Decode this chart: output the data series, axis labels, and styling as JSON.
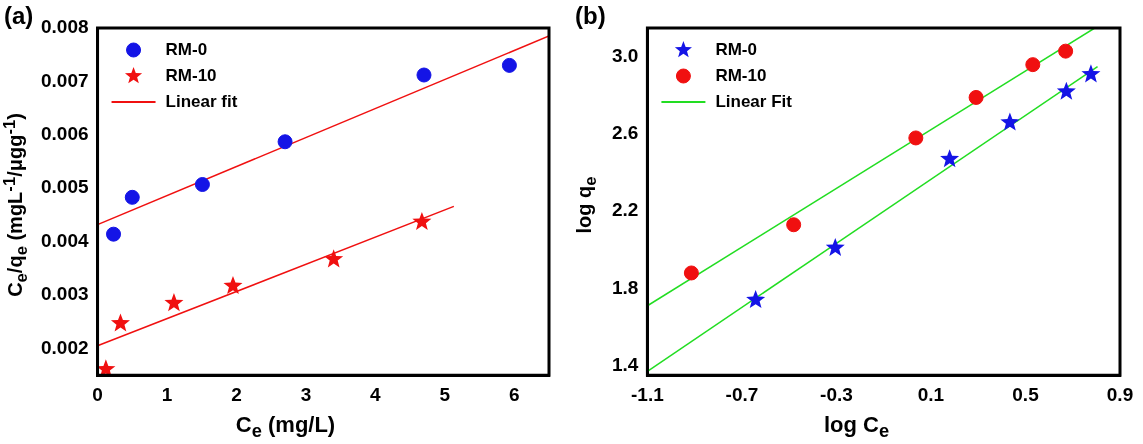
{
  "chart_data": [
    {
      "type": "scatter",
      "title": "(a)",
      "xlabel": "C$_{e}$ (mg/L)",
      "ylabel": "C$_{e}$/q$_{e}$ (mgL$^{-1}$/μgg$^{-1}$)",
      "xlim": [
        0,
        6.5
      ],
      "xticks": [
        0,
        1,
        2,
        3,
        4,
        5,
        6
      ],
      "ylim": [
        0.0015,
        0.008
      ],
      "yticks": [
        0.002,
        0.003,
        0.004,
        0.005,
        0.006,
        0.007,
        0.008
      ],
      "grid": false,
      "legend": "top left",
      "series": [
        {
          "name": "RM-0",
          "type": "scatter",
          "marker": "circle",
          "color": "#1414e6",
          "x": [
            0.23,
            0.5,
            1.51,
            2.7,
            4.7,
            5.93
          ],
          "values": [
            0.00414,
            0.00483,
            0.00507,
            0.00587,
            0.00712,
            0.0073
          ]
        },
        {
          "name": "RM-10",
          "type": "scatter",
          "marker": "star",
          "color": "#f01010",
          "x": [
            0.12,
            0.33,
            1.1,
            1.95,
            3.4,
            4.67
          ],
          "values": [
            0.00161,
            0.00247,
            0.00285,
            0.00317,
            0.00367,
            0.00437
          ]
        },
        {
          "name": "Linear fit",
          "type": "line",
          "marker": "none",
          "color": "#f01010",
          "x": [
            0,
            6.5
          ],
          "values": [
            0.00432,
            0.00785
          ]
        },
        {
          "type": "line",
          "marker": "none",
          "color": "#f01010",
          "x": [
            0,
            5.13
          ],
          "values": [
            0.00205,
            0.00466
          ]
        }
      ]
    },
    {
      "type": "scatter",
      "title": "(b)",
      "xlabel": "log C$_{e}$",
      "ylabel": "log q$_{e}$",
      "xlim": [
        -1.1,
        0.9
      ],
      "xticks": [
        -1.1,
        -0.7,
        -0.3,
        0.1,
        0.5,
        0.9
      ],
      "ylim": [
        1.35,
        3.15
      ],
      "yticks": [
        1.4,
        1.8,
        2.2,
        2.6,
        {
          "value": 3,
          "label": "3.0"
        }
      ],
      "grid": false,
      "legend": "top left",
      "series": [
        {
          "name": "RM-0",
          "type": "scatter",
          "marker": "star",
          "color": "#1414e6",
          "x": [
            -0.642,
            -0.305,
            0.179,
            0.434,
            0.673,
            0.777
          ],
          "values": [
            1.74,
            2.01,
            2.47,
            2.66,
            2.82,
            2.91
          ]
        },
        {
          "name": "RM-10",
          "type": "scatter",
          "marker": "circle",
          "color": "#f01010",
          "x": [
            -0.914,
            -0.481,
            0.036,
            0.291,
            0.531,
            0.67
          ],
          "values": [
            1.88,
            2.13,
            2.58,
            2.79,
            2.96,
            3.03
          ]
        },
        {
          "name": "Linear Fit",
          "type": "line",
          "marker": "none",
          "color": "#22dd22",
          "x": [
            -1.1,
            0.793
          ],
          "values": [
            1.71,
            3.15
          ]
        },
        {
          "type": "line",
          "marker": "none",
          "color": "#22dd22",
          "x": [
            -1.1,
            0.805
          ],
          "values": [
            1.37,
            2.95
          ]
        }
      ]
    }
  ]
}
